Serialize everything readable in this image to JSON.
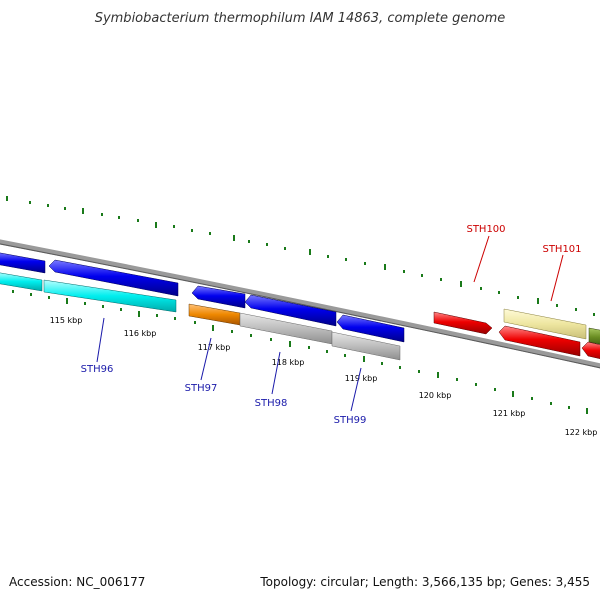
{
  "title": "Symbiobacterium thermophilum IAM 14863, complete genome",
  "footer": {
    "accession": "Accession: NC_006177",
    "topology": "Topology: circular; Length: 3,566,135 bp; Genes: 3,455"
  },
  "ticks": [
    "115 kbp",
    "116 kbp",
    "117 kbp",
    "118 kbp",
    "119 kbp",
    "120 kbp",
    "121 kbp",
    "122 kbp"
  ],
  "genes": [
    "STH96",
    "STH97",
    "STH98",
    "STH99",
    "STH100",
    "STH101"
  ],
  "colors": {
    "forward_strand": "#0000dd",
    "reverse_strand": "#ee0000",
    "cyan": "#00e5ee",
    "orange": "#ee8800",
    "gray": "#b5b5b5",
    "khaki": "#eee6a0",
    "olive": "#6b8e23",
    "ticks": "#1a7a1a"
  }
}
